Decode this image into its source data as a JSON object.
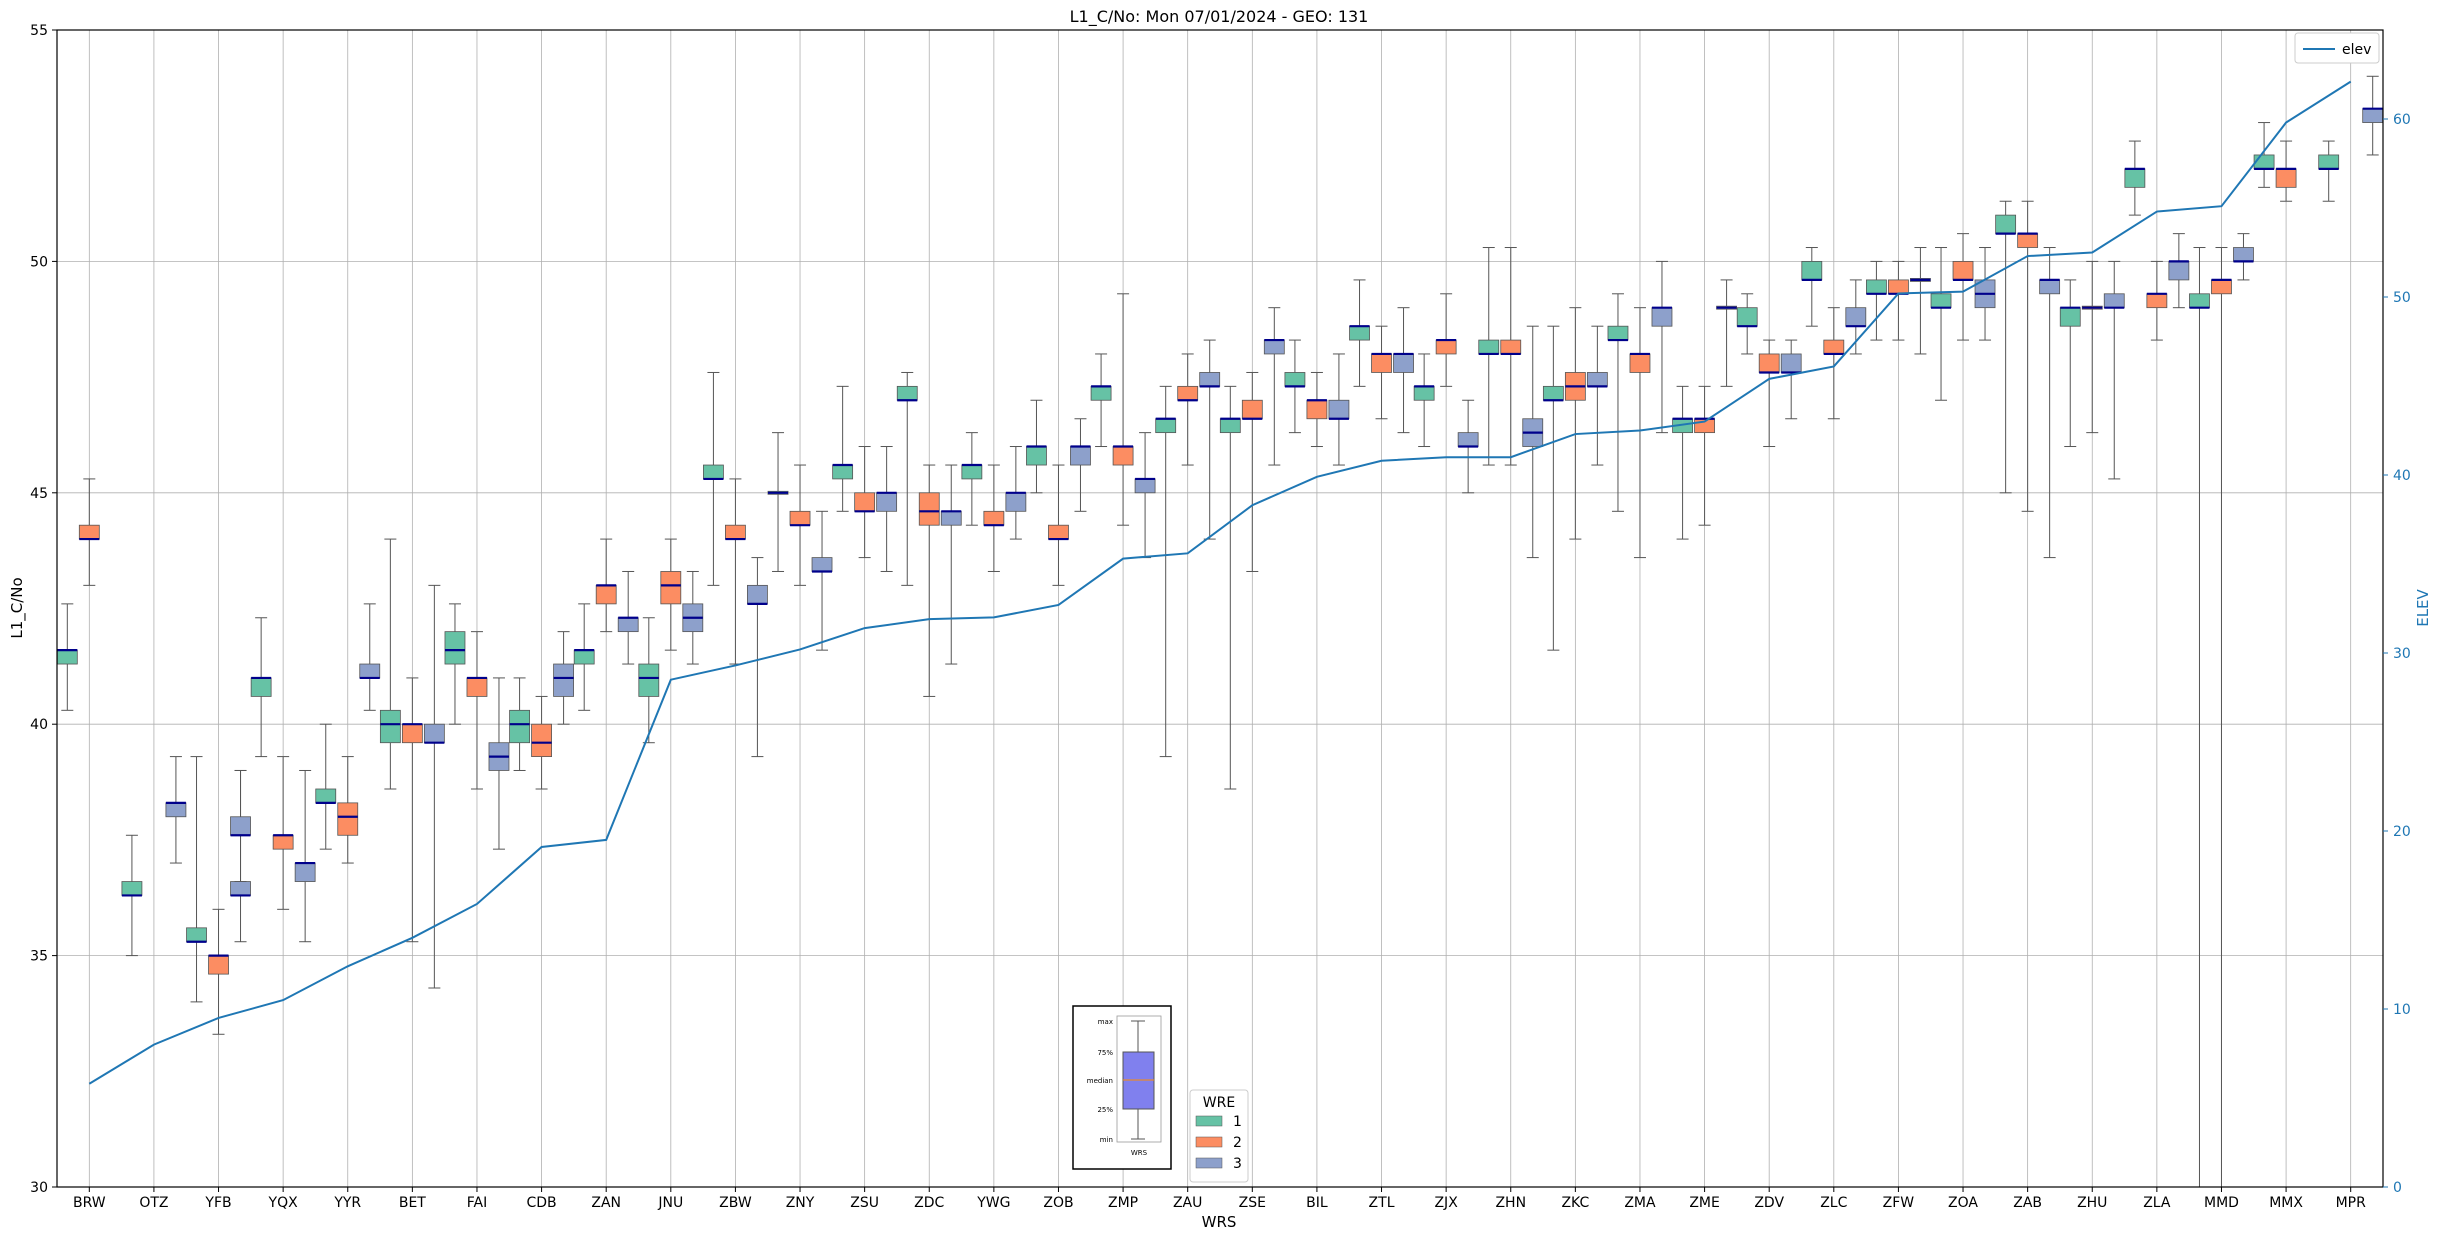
{
  "chart_data": {
    "type": "box",
    "title": "L1_C/No: Mon 07/01/2024 - GEO: 131",
    "xlabel": "WRS",
    "ylabel": "L1_C/No",
    "ylabel_right": "ELEV",
    "ylim": [
      30,
      55
    ],
    "ylim_right": [
      0,
      65
    ],
    "yticks": [
      30,
      35,
      40,
      45,
      50,
      55
    ],
    "yticks_right": [
      0,
      10,
      20,
      30,
      40,
      50,
      60
    ],
    "grid": true,
    "categories": [
      "BRW",
      "OTZ",
      "YFB",
      "YQX",
      "YYR",
      "BET",
      "FAI",
      "CDB",
      "ZAN",
      "JNU",
      "ZBW",
      "ZNY",
      "ZSU",
      "ZDC",
      "YWG",
      "ZOB",
      "ZMP",
      "ZAU",
      "ZSE",
      "BIL",
      "ZTL",
      "ZJX",
      "ZHN",
      "ZKC",
      "ZMA",
      "ZME",
      "ZDV",
      "ZLC",
      "ZFW",
      "ZOA",
      "ZAB",
      "ZHU",
      "ZLA",
      "MMD",
      "MMX",
      "MPR"
    ],
    "colors": {
      "1": "#66c2a5",
      "2": "#fc8d62",
      "3": "#8da0cb",
      "median": "#00008b",
      "elev": "#1f77b4",
      "grid": "#b0b0b0"
    },
    "box_legend": {
      "title": "WRE",
      "entries": [
        "1",
        "2",
        "3"
      ]
    },
    "line_legend": {
      "entries": [
        "elev"
      ],
      "placement": "top-right"
    },
    "inset_key": {
      "labels": [
        "max",
        "75%",
        "median",
        "25%",
        "min"
      ],
      "xlabel": "WRS"
    },
    "boxes": [
      {
        "wrs": "BRW",
        "wre": "1",
        "min": 40.3,
        "q1": 41.3,
        "med": 41.6,
        "q3": 41.6,
        "max": 42.6
      },
      {
        "wrs": "BRW",
        "wre": "2",
        "min": 43.0,
        "q1": 44.0,
        "med": 44.0,
        "q3": 44.3,
        "max": 45.3
      },
      {
        "wrs": "OTZ",
        "wre": "3",
        "min": 37.0,
        "q1": 38.0,
        "med": 38.3,
        "q3": 38.3,
        "max": 39.3
      },
      {
        "wrs": "OTZ",
        "wre": "1",
        "min": 35.0,
        "q1": 36.3,
        "med": 36.3,
        "q3": 36.6,
        "max": 37.6
      },
      {
        "wrs": "YFB",
        "wre": "3",
        "min": 36.6,
        "q1": 37.6,
        "med": 37.6,
        "q3": 38.0,
        "max": 39.0
      },
      {
        "wrs": "YFB",
        "wre": "1",
        "min": 34.0,
        "q1": 35.3,
        "med": 35.3,
        "q3": 35.6,
        "max": 39.3
      },
      {
        "wrs": "YFB",
        "wre": "2",
        "min": 33.3,
        "q1": 34.6,
        "med": 35.0,
        "q3": 35.0,
        "max": 36.0
      },
      {
        "wrs": "YFB",
        "wre": "3",
        "min": 35.3,
        "q1": 36.3,
        "med": 36.3,
        "q3": 36.6,
        "max": 39.0
      },
      {
        "wrs": "YQX",
        "wre": "1",
        "min": 39.3,
        "q1": 40.6,
        "med": 41.0,
        "q3": 41.0,
        "max": 42.3
      },
      {
        "wrs": "YQX",
        "wre": "2",
        "min": 36.0,
        "q1": 37.3,
        "med": 37.6,
        "q3": 37.6,
        "max": 39.3
      },
      {
        "wrs": "YQX",
        "wre": "3",
        "min": 35.3,
        "q1": 36.6,
        "med": 37.0,
        "q3": 37.0,
        "max": 39.0
      },
      {
        "wrs": "YYR",
        "wre": "1",
        "min": 37.3,
        "q1": 38.3,
        "med": 38.3,
        "q3": 38.6,
        "max": 40.0
      },
      {
        "wrs": "YYR",
        "wre": "2",
        "min": 37.0,
        "q1": 37.6,
        "med": 38.0,
        "q3": 38.3,
        "max": 39.3
      },
      {
        "wrs": "YYR",
        "wre": "3",
        "min": 40.3,
        "q1": 41.0,
        "med": 41.0,
        "q3": 41.3,
        "max": 42.6
      },
      {
        "wrs": "BET",
        "wre": "1",
        "min": 38.6,
        "q1": 39.6,
        "med": 40.0,
        "q3": 40.3,
        "max": 44.0
      },
      {
        "wrs": "BET",
        "wre": "2",
        "min": 35.3,
        "q1": 39.6,
        "med": 40.0,
        "q3": 40.0,
        "max": 41.0
      },
      {
        "wrs": "BET",
        "wre": "3",
        "min": 34.3,
        "q1": 39.6,
        "med": 39.6,
        "q3": 40.0,
        "max": 43.0
      },
      {
        "wrs": "FAI",
        "wre": "1",
        "min": 40.0,
        "q1": 41.3,
        "med": 41.6,
        "q3": 42.0,
        "max": 42.6
      },
      {
        "wrs": "FAI",
        "wre": "2",
        "min": 38.6,
        "q1": 40.6,
        "med": 41.0,
        "q3": 41.0,
        "max": 42.0
      },
      {
        "wrs": "FAI",
        "wre": "3",
        "min": 37.3,
        "q1": 39.0,
        "med": 39.3,
        "q3": 39.6,
        "max": 41.0
      },
      {
        "wrs": "CDB",
        "wre": "1",
        "min": 39.0,
        "q1": 39.6,
        "med": 40.0,
        "q3": 40.3,
        "max": 41.0
      },
      {
        "wrs": "CDB",
        "wre": "2",
        "min": 38.6,
        "q1": 39.3,
        "med": 39.6,
        "q3": 40.0,
        "max": 40.6
      },
      {
        "wrs": "CDB",
        "wre": "3",
        "min": 40.0,
        "q1": 40.6,
        "med": 41.0,
        "q3": 41.3,
        "max": 42.0
      },
      {
        "wrs": "ZAN",
        "wre": "1",
        "min": 40.3,
        "q1": 41.3,
        "med": 41.6,
        "q3": 41.6,
        "max": 42.6
      },
      {
        "wrs": "ZAN",
        "wre": "2",
        "min": 42.0,
        "q1": 42.6,
        "med": 43.0,
        "q3": 43.0,
        "max": 44.0
      },
      {
        "wrs": "ZAN",
        "wre": "3",
        "min": 41.3,
        "q1": 42.0,
        "med": 42.3,
        "q3": 42.3,
        "max": 43.3
      },
      {
        "wrs": "JNU",
        "wre": "1",
        "min": 39.6,
        "q1": 40.6,
        "med": 41.0,
        "q3": 41.3,
        "max": 42.3
      },
      {
        "wrs": "JNU",
        "wre": "2",
        "min": 41.6,
        "q1": 42.6,
        "med": 43.0,
        "q3": 43.3,
        "max": 44.0
      },
      {
        "wrs": "JNU",
        "wre": "3",
        "min": 41.3,
        "q1": 42.0,
        "med": 42.3,
        "q3": 42.6,
        "max": 43.3
      },
      {
        "wrs": "ZBW",
        "wre": "1",
        "min": 43.0,
        "q1": 45.3,
        "med": 45.3,
        "q3": 45.6,
        "max": 47.6
      },
      {
        "wrs": "ZBW",
        "wre": "2",
        "min": 41.3,
        "q1": 44.0,
        "med": 44.0,
        "q3": 44.3,
        "max": 45.3
      },
      {
        "wrs": "ZBW",
        "wre": "3",
        "min": 39.3,
        "q1": 42.6,
        "med": 42.6,
        "q3": 43.0,
        "max": 43.6
      },
      {
        "wrs": "ZNY",
        "wre": "1",
        "min": 43.3,
        "q1": 45.0,
        "med": 45.0,
        "q3": 45.0,
        "max": 46.3
      },
      {
        "wrs": "ZNY",
        "wre": "2",
        "min": 43.0,
        "q1": 44.3,
        "med": 44.3,
        "q3": 44.6,
        "max": 45.6
      },
      {
        "wrs": "ZNY",
        "wre": "3",
        "min": 41.6,
        "q1": 43.3,
        "med": 43.3,
        "q3": 43.6,
        "max": 44.6
      },
      {
        "wrs": "ZSU",
        "wre": "1",
        "min": 44.6,
        "q1": 45.3,
        "med": 45.6,
        "q3": 45.6,
        "max": 47.3
      },
      {
        "wrs": "ZSU",
        "wre": "2",
        "min": 43.6,
        "q1": 44.6,
        "med": 44.6,
        "q3": 45.0,
        "max": 46.0
      },
      {
        "wrs": "ZSU",
        "wre": "3",
        "min": 43.3,
        "q1": 44.6,
        "med": 45.0,
        "q3": 45.0,
        "max": 46.0
      },
      {
        "wrs": "ZDC",
        "wre": "1",
        "min": 43.0,
        "q1": 47.0,
        "med": 47.0,
        "q3": 47.3,
        "max": 47.6
      },
      {
        "wrs": "ZDC",
        "wre": "2",
        "min": 40.6,
        "q1": 44.3,
        "med": 44.6,
        "q3": 45.0,
        "max": 45.6
      },
      {
        "wrs": "ZDC",
        "wre": "3",
        "min": 41.3,
        "q1": 44.3,
        "med": 44.6,
        "q3": 44.6,
        "max": 45.6
      },
      {
        "wrs": "YWG",
        "wre": "1",
        "min": 44.3,
        "q1": 45.3,
        "med": 45.6,
        "q3": 45.6,
        "max": 46.3
      },
      {
        "wrs": "YWG",
        "wre": "2",
        "min": 43.3,
        "q1": 44.3,
        "med": 44.3,
        "q3": 44.6,
        "max": 45.6
      },
      {
        "wrs": "YWG",
        "wre": "3",
        "min": 44.0,
        "q1": 44.6,
        "med": 45.0,
        "q3": 45.0,
        "max": 46.0
      },
      {
        "wrs": "ZOB",
        "wre": "1",
        "min": 45.0,
        "q1": 45.6,
        "med": 46.0,
        "q3": 46.0,
        "max": 47.0
      },
      {
        "wrs": "ZOB",
        "wre": "2",
        "min": 43.0,
        "q1": 44.0,
        "med": 44.0,
        "q3": 44.3,
        "max": 45.6
      },
      {
        "wrs": "ZOB",
        "wre": "3",
        "min": 44.6,
        "q1": 45.6,
        "med": 46.0,
        "q3": 46.0,
        "max": 46.6
      },
      {
        "wrs": "ZMP",
        "wre": "1",
        "min": 46.0,
        "q1": 47.0,
        "med": 47.3,
        "q3": 47.3,
        "max": 48.0
      },
      {
        "wrs": "ZMP",
        "wre": "2",
        "min": 44.3,
        "q1": 45.6,
        "med": 46.0,
        "q3": 46.0,
        "max": 49.3
      },
      {
        "wrs": "ZMP",
        "wre": "3",
        "min": 43.6,
        "q1": 45.0,
        "med": 45.3,
        "q3": 45.3,
        "max": 46.3
      },
      {
        "wrs": "ZAU",
        "wre": "1",
        "min": 39.3,
        "q1": 46.3,
        "med": 46.6,
        "q3": 46.6,
        "max": 47.3
      },
      {
        "wrs": "ZAU",
        "wre": "2",
        "min": 45.6,
        "q1": 47.0,
        "med": 47.0,
        "q3": 47.3,
        "max": 48.0
      },
      {
        "wrs": "ZAU",
        "wre": "3",
        "min": 44.0,
        "q1": 47.3,
        "med": 47.3,
        "q3": 47.6,
        "max": 48.3
      },
      {
        "wrs": "ZSE",
        "wre": "1",
        "min": 38.6,
        "q1": 46.3,
        "med": 46.6,
        "q3": 46.6,
        "max": 47.3
      },
      {
        "wrs": "ZSE",
        "wre": "2",
        "min": 43.3,
        "q1": 46.6,
        "med": 46.6,
        "q3": 47.0,
        "max": 47.6
      },
      {
        "wrs": "ZSE",
        "wre": "3",
        "min": 45.6,
        "q1": 48.0,
        "med": 48.3,
        "q3": 48.3,
        "max": 49.0
      },
      {
        "wrs": "BIL",
        "wre": "1",
        "min": 46.3,
        "q1": 47.3,
        "med": 47.3,
        "q3": 47.6,
        "max": 48.3
      },
      {
        "wrs": "BIL",
        "wre": "2",
        "min": 46.0,
        "q1": 46.6,
        "med": 47.0,
        "q3": 47.0,
        "max": 47.6
      },
      {
        "wrs": "BIL",
        "wre": "3",
        "min": 45.6,
        "q1": 46.6,
        "med": 46.6,
        "q3": 47.0,
        "max": 48.0
      },
      {
        "wrs": "ZTL",
        "wre": "1",
        "min": 47.3,
        "q1": 48.3,
        "med": 48.6,
        "q3": 48.6,
        "max": 49.6
      },
      {
        "wrs": "ZTL",
        "wre": "2",
        "min": 46.6,
        "q1": 47.6,
        "med": 48.0,
        "q3": 48.0,
        "max": 48.6
      },
      {
        "wrs": "ZTL",
        "wre": "3",
        "min": 46.3,
        "q1": 47.6,
        "med": 48.0,
        "q3": 48.0,
        "max": 49.0
      },
      {
        "wrs": "ZJX",
        "wre": "1",
        "min": 46.0,
        "q1": 47.0,
        "med": 47.3,
        "q3": 47.3,
        "max": 48.0
      },
      {
        "wrs": "ZJX",
        "wre": "2",
        "min": 47.3,
        "q1": 48.0,
        "med": 48.3,
        "q3": 48.3,
        "max": 49.3
      },
      {
        "wrs": "ZJX",
        "wre": "3",
        "min": 45.0,
        "q1": 46.0,
        "med": 46.0,
        "q3": 46.3,
        "max": 47.0
      },
      {
        "wrs": "ZHN",
        "wre": "1",
        "min": 45.6,
        "q1": 48.0,
        "med": 48.0,
        "q3": 48.3,
        "max": 50.3
      },
      {
        "wrs": "ZHN",
        "wre": "2",
        "min": 45.6,
        "q1": 48.0,
        "med": 48.0,
        "q3": 48.3,
        "max": 50.3
      },
      {
        "wrs": "ZHN",
        "wre": "3",
        "min": 43.6,
        "q1": 46.0,
        "med": 46.3,
        "q3": 46.6,
        "max": 48.6
      },
      {
        "wrs": "ZKC",
        "wre": "1",
        "min": 41.6,
        "q1": 47.0,
        "med": 47.0,
        "q3": 47.3,
        "max": 48.6
      },
      {
        "wrs": "ZKC",
        "wre": "2",
        "min": 44.0,
        "q1": 47.0,
        "med": 47.3,
        "q3": 47.6,
        "max": 49.0
      },
      {
        "wrs": "ZKC",
        "wre": "3",
        "min": 45.6,
        "q1": 47.3,
        "med": 47.3,
        "q3": 47.6,
        "max": 48.6
      },
      {
        "wrs": "ZMA",
        "wre": "1",
        "min": 44.6,
        "q1": 48.3,
        "med": 48.3,
        "q3": 48.6,
        "max": 49.3
      },
      {
        "wrs": "ZMA",
        "wre": "2",
        "min": 43.6,
        "q1": 47.6,
        "med": 48.0,
        "q3": 48.0,
        "max": 49.0
      },
      {
        "wrs": "ZMA",
        "wre": "3",
        "min": 46.3,
        "q1": 48.6,
        "med": 49.0,
        "q3": 49.0,
        "max": 50.0
      },
      {
        "wrs": "ZME",
        "wre": "1",
        "min": 44.0,
        "q1": 46.3,
        "med": 46.6,
        "q3": 46.6,
        "max": 47.3
      },
      {
        "wrs": "ZME",
        "wre": "2",
        "min": 44.3,
        "q1": 46.3,
        "med": 46.6,
        "q3": 46.6,
        "max": 47.3
      },
      {
        "wrs": "ZME",
        "wre": "3",
        "min": 47.3,
        "q1": 49.0,
        "med": 49.0,
        "q3": 49.0,
        "max": 49.6
      },
      {
        "wrs": "ZDV",
        "wre": "1",
        "min": 48.0,
        "q1": 48.6,
        "med": 48.6,
        "q3": 49.0,
        "max": 49.3
      },
      {
        "wrs": "ZDV",
        "wre": "2",
        "min": 46.0,
        "q1": 47.6,
        "med": 47.6,
        "q3": 48.0,
        "max": 48.3
      },
      {
        "wrs": "ZDV",
        "wre": "3",
        "min": 46.6,
        "q1": 47.6,
        "med": 47.6,
        "q3": 48.0,
        "max": 48.3
      },
      {
        "wrs": "ZLC",
        "wre": "1",
        "min": 48.6,
        "q1": 49.6,
        "med": 49.6,
        "q3": 50.0,
        "max": 50.3
      },
      {
        "wrs": "ZLC",
        "wre": "2",
        "min": 46.6,
        "q1": 48.0,
        "med": 48.0,
        "q3": 48.3,
        "max": 49.0
      },
      {
        "wrs": "ZLC",
        "wre": "3",
        "min": 48.0,
        "q1": 48.6,
        "med": 48.6,
        "q3": 49.0,
        "max": 49.6
      },
      {
        "wrs": "ZFW",
        "wre": "1",
        "min": 48.3,
        "q1": 49.3,
        "med": 49.3,
        "q3": 49.6,
        "max": 50.0
      },
      {
        "wrs": "ZFW",
        "wre": "2",
        "min": 48.3,
        "q1": 49.3,
        "med": 49.3,
        "q3": 49.6,
        "max": 50.0
      },
      {
        "wrs": "ZFW",
        "wre": "3",
        "min": 48.0,
        "q1": 49.6,
        "med": 49.6,
        "q3": 49.6,
        "max": 50.3
      },
      {
        "wrs": "ZOA",
        "wre": "1",
        "min": 47.0,
        "q1": 49.0,
        "med": 49.0,
        "q3": 49.3,
        "max": 50.3
      },
      {
        "wrs": "ZOA",
        "wre": "2",
        "min": 48.3,
        "q1": 49.6,
        "med": 49.6,
        "q3": 50.0,
        "max": 50.6
      },
      {
        "wrs": "ZOA",
        "wre": "3",
        "min": 48.3,
        "q1": 49.0,
        "med": 49.3,
        "q3": 49.6,
        "max": 50.3
      },
      {
        "wrs": "ZAB",
        "wre": "1",
        "min": 45.0,
        "q1": 50.6,
        "med": 50.6,
        "q3": 51.0,
        "max": 51.3
      },
      {
        "wrs": "ZAB",
        "wre": "2",
        "min": 44.6,
        "q1": 50.3,
        "med": 50.6,
        "q3": 50.6,
        "max": 51.3
      },
      {
        "wrs": "ZAB",
        "wre": "3",
        "min": 43.6,
        "q1": 49.3,
        "med": 49.6,
        "q3": 49.6,
        "max": 50.3
      },
      {
        "wrs": "ZHU",
        "wre": "1",
        "min": 46.0,
        "q1": 48.6,
        "med": 49.0,
        "q3": 49.0,
        "max": 49.6
      },
      {
        "wrs": "ZHU",
        "wre": "2",
        "min": 46.3,
        "q1": 49.0,
        "med": 49.0,
        "q3": 49.0,
        "max": 50.0
      },
      {
        "wrs": "ZHU",
        "wre": "3",
        "min": 45.3,
        "q1": 49.0,
        "med": 49.0,
        "q3": 49.3,
        "max": 50.0
      },
      {
        "wrs": "ZLA",
        "wre": "1",
        "min": 51.0,
        "q1": 51.6,
        "med": 52.0,
        "q3": 52.0,
        "max": 52.6
      },
      {
        "wrs": "ZLA",
        "wre": "2",
        "min": 48.3,
        "q1": 49.0,
        "med": 49.3,
        "q3": 49.3,
        "max": 50.0
      },
      {
        "wrs": "ZLA",
        "wre": "3",
        "min": 49.0,
        "q1": 49.6,
        "med": 50.0,
        "q3": 50.0,
        "max": 50.6
      },
      {
        "wrs": "MMD",
        "wre": "1",
        "min": 30.0,
        "q1": 49.0,
        "med": 49.0,
        "q3": 49.3,
        "max": 50.3
      },
      {
        "wrs": "MMD",
        "wre": "2",
        "min": 30.0,
        "q1": 49.3,
        "med": 49.6,
        "q3": 49.6,
        "max": 50.3
      },
      {
        "wrs": "MMD",
        "wre": "3",
        "min": 49.6,
        "q1": 50.0,
        "med": 50.0,
        "q3": 50.3,
        "max": 50.6
      },
      {
        "wrs": "MMX",
        "wre": "1",
        "min": 51.6,
        "q1": 52.0,
        "med": 52.0,
        "q3": 52.3,
        "max": 53.0
      },
      {
        "wrs": "MMX",
        "wre": "2",
        "min": 51.3,
        "q1": 51.6,
        "med": 52.0,
        "q3": 52.0,
        "max": 52.6
      },
      {
        "wrs": "MPR",
        "wre": "1",
        "min": 51.3,
        "q1": 52.0,
        "med": 52.0,
        "q3": 52.3,
        "max": 52.6
      },
      {
        "wrs": "MPR",
        "wre": "3",
        "min": 52.3,
        "q1": 53.0,
        "med": 53.3,
        "q3": 53.3,
        "max": 54.0
      }
    ],
    "elev": {
      "name": "elev",
      "x": [
        "BRW",
        "OTZ",
        "YFB",
        "YQX",
        "YYR",
        "BET",
        "FAI",
        "CDB",
        "ZAN",
        "JNU",
        "ZBW",
        "ZNY",
        "ZSU",
        "ZDC",
        "YWG",
        "ZOB",
        "ZMP",
        "ZAU",
        "ZSE",
        "BIL",
        "ZTL",
        "ZJX",
        "ZHN",
        "ZKC",
        "ZMA",
        "ZME",
        "ZDV",
        "ZLC",
        "ZFW",
        "ZOA",
        "ZAB",
        "ZHU",
        "ZLA",
        "MMD",
        "MMX",
        "MPR"
      ],
      "values": [
        5.8,
        8.0,
        9.5,
        10.5,
        12.4,
        14.0,
        15.9,
        19.1,
        19.5,
        28.5,
        29.3,
        30.2,
        31.4,
        31.9,
        32.0,
        32.7,
        35.3,
        35.6,
        38.3,
        39.9,
        40.8,
        41.0,
        41.0,
        42.3,
        42.5,
        43.0,
        45.4,
        46.1,
        50.2,
        50.3,
        52.3,
        52.5,
        54.8,
        55.1,
        59.8,
        62.1
      ]
    }
  }
}
